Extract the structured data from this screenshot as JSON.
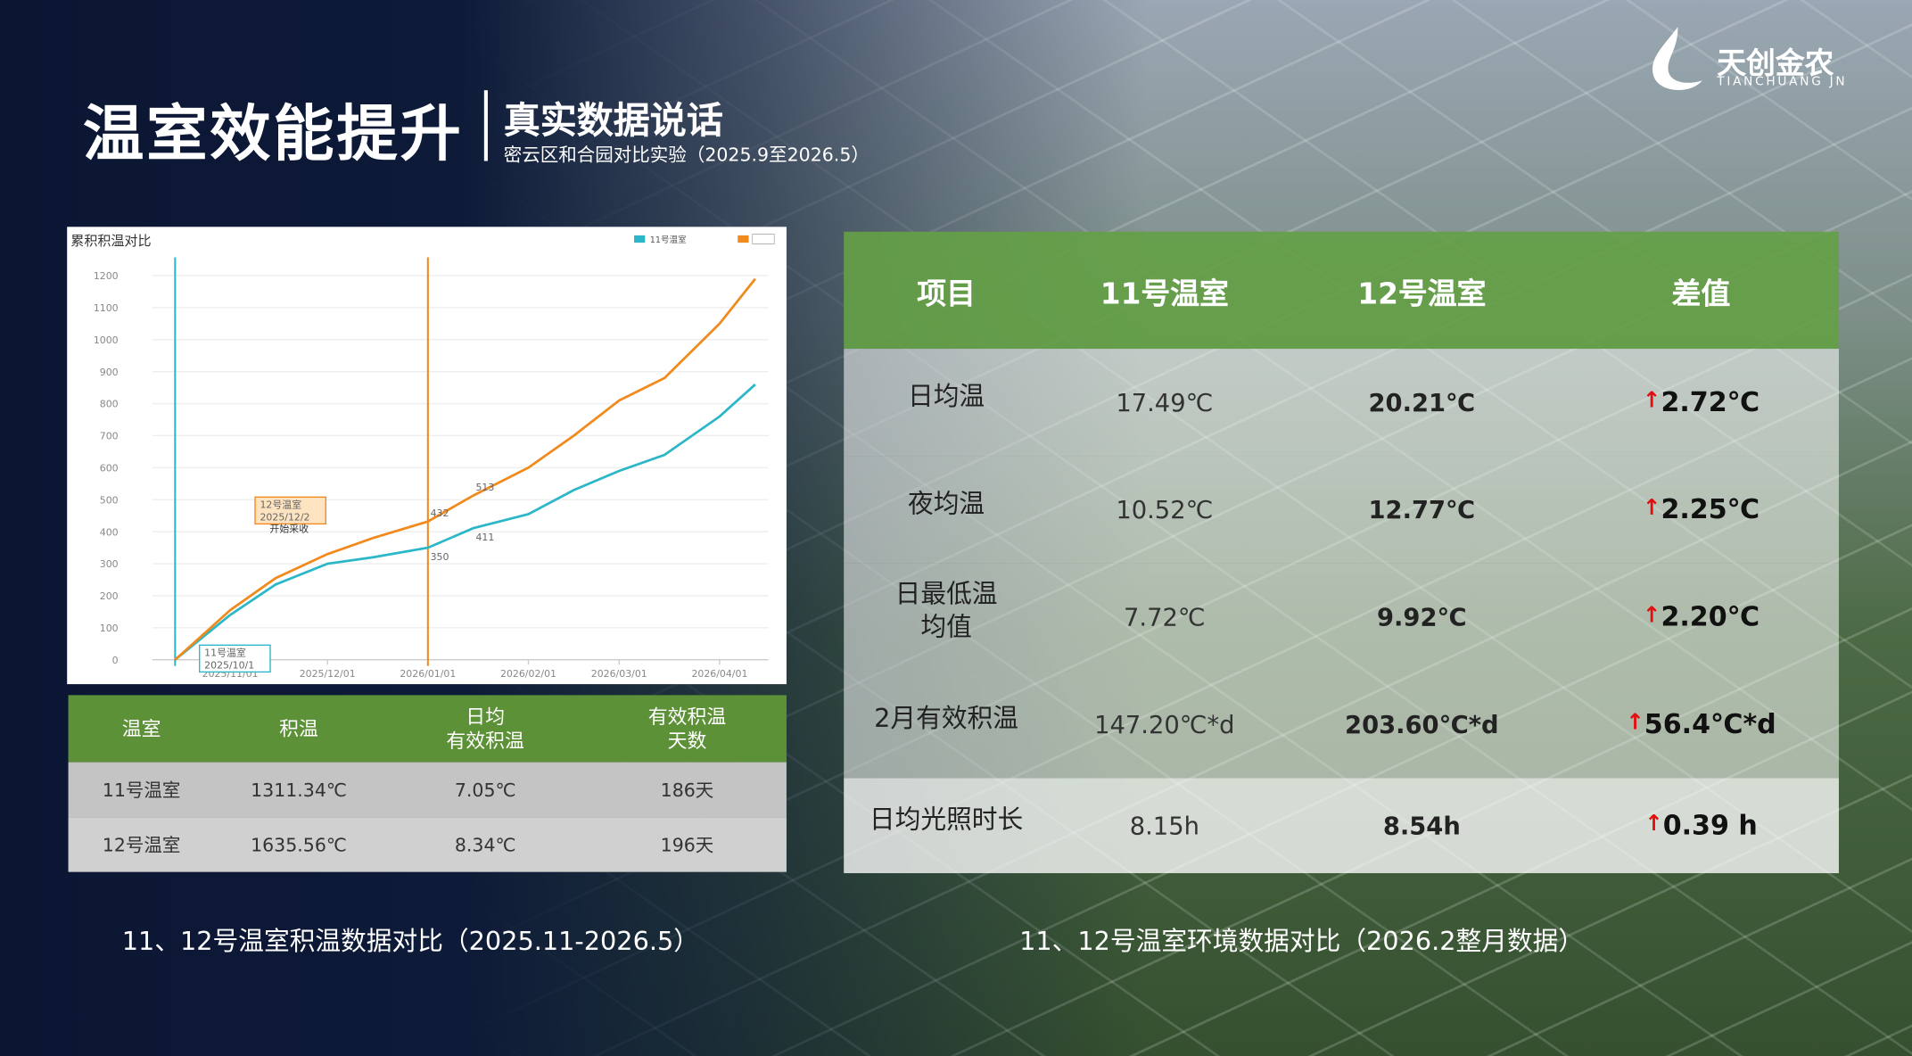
{
  "header": {
    "title": "温室效能提升",
    "subtitle": "真实数据说话",
    "note": "密云区和合园对比实验（2025.9至2026.5）"
  },
  "logo": {
    "name": "天创金农",
    "pinyin": "TIANCHUANG JN"
  },
  "chart_data": {
    "type": "line",
    "title": "累积积温对比",
    "x": [
      "2025/10/15",
      "2025/11/01",
      "2025/11/15",
      "2025/12/01",
      "2025/12/15",
      "2026/01/01",
      "2026/01/15",
      "2026/02/01",
      "2026/02/15",
      "2026/03/01",
      "2026/03/15",
      "2026/04/01",
      "2026/04/12"
    ],
    "series": [
      {
        "name": "11号温室",
        "color": "#2bb7c8",
        "values": [
          0,
          140,
          235,
          300,
          320,
          350,
          411,
          455,
          530,
          590,
          640,
          760,
          860
        ]
      },
      {
        "color": "#f08a1c",
        "values": [
          0,
          155,
          255,
          330,
          380,
          432,
          513,
          600,
          700,
          810,
          880,
          1050,
          1190
        ]
      }
    ],
    "xlim": [
      "2025/10/08",
      "2026/04/16"
    ],
    "xticks": [
      "2025/11/01",
      "2025/12/01",
      "2026/01/01",
      "2026/02/01",
      "2026/03/01",
      "2026/04/01"
    ],
    "ylim": [
      0,
      1200
    ],
    "yticks": [
      0,
      100,
      200,
      300,
      400,
      500,
      600,
      700,
      800,
      900,
      1000,
      1100,
      1200
    ],
    "grid": true,
    "vlines": [
      {
        "x": "2025/10/15",
        "color": "#2bb7c8"
      },
      {
        "x": "2026/01/01",
        "color": "#f08a1c"
      }
    ],
    "annotations": [
      {
        "x": "2025/10/15",
        "y": 0,
        "lines": [
          "11号温室",
          "2025/10/1"
        ],
        "color": "#2bb7c8"
      },
      {
        "x": "2025/12/02",
        "y": 432,
        "lines": [
          "12号温室",
          "2025/12/2"
        ],
        "color": "#f08a1c"
      }
    ],
    "notes": [
      {
        "x": "2025/12/02",
        "y": 380,
        "text": "开始采收"
      }
    ],
    "labels": [
      {
        "x": "2026/01/01",
        "y": 350
      },
      {
        "x": "2026/01/01",
        "y": 432
      },
      {
        "x": "2026/01/15",
        "y": 411
      },
      {
        "x": "2026/01/15",
        "y": 513
      }
    ]
  },
  "left_table": {
    "headers": [
      "温室",
      "积温",
      "日均\n有效积温",
      "有效积温\n天数"
    ],
    "rows": [
      [
        "11号温室",
        "1311.34℃",
        "7.05℃",
        "186天"
      ],
      [
        "12号温室",
        "1635.56℃",
        "8.34℃",
        "196天"
      ]
    ]
  },
  "right_table": {
    "headers": [
      "项目",
      "11号温室",
      "12号温室",
      "差值"
    ],
    "rows": [
      {
        "label": "日均温",
        "a": "17.49℃",
        "b": "20.21℃",
        "arrow": "↑",
        "diff": "2.72℃"
      },
      {
        "label": "夜均温",
        "a": "10.52℃",
        "b": "12.77℃",
        "arrow": "↑",
        "diff": "2.25℃"
      },
      {
        "label": "日最低温\n均值",
        "a": "7.72℃",
        "b": "9.92℃",
        "arrow": "↑",
        "diff": "2.20℃"
      },
      {
        "label": "2月有效积温",
        "a": "147.20℃*d",
        "b": "203.60℃*d",
        "arrow": "↑",
        "diff": "56.4℃*d"
      },
      {
        "label": "日均光照时长",
        "a": "8.15h",
        "b": "8.54h",
        "arrow": "↑",
        "diff": "0.39 h"
      }
    ]
  },
  "captions": [
    "11、12号温室积温数据对比（2025.11-2026.5）",
    "11、12号温室环境数据对比（2026.2整月数据）"
  ]
}
